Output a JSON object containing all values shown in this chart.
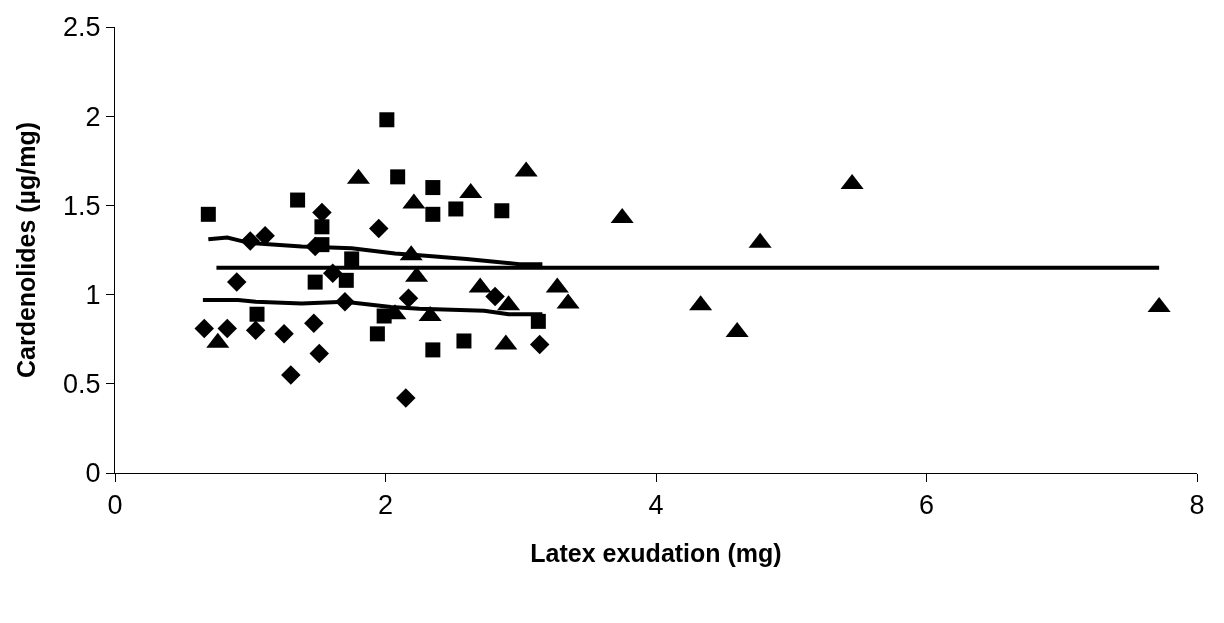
{
  "chart_data": {
    "type": "scatter",
    "xlabel": "Latex exudation (mg)",
    "ylabel": "Cardenolides (µg/mg)",
    "xlim": [
      0,
      8
    ],
    "xticks": [
      0,
      2,
      4,
      6,
      8
    ],
    "ylim": [
      0,
      2.5
    ],
    "yticks": [
      0,
      0.5,
      1,
      1.5,
      2,
      2.5
    ],
    "series": [
      {
        "marker": "diamond",
        "color": "#000000",
        "x": [
          0.66,
          0.83,
          0.9,
          1.0,
          1.11,
          1.04,
          1.25,
          1.3,
          1.47,
          1.51,
          1.53,
          1.48,
          1.61,
          1.7,
          1.95,
          2.17,
          2.15,
          2.81,
          3.14
        ],
        "values": [
          0.81,
          0.81,
          1.07,
          1.3,
          1.33,
          0.8,
          0.78,
          0.55,
          0.84,
          0.67,
          1.46,
          1.27,
          1.12,
          0.96,
          1.37,
          0.98,
          0.42,
          0.99,
          0.72
        ]
      },
      {
        "marker": "square",
        "color": "#000000",
        "x": [
          0.69,
          1.35,
          2.01,
          2.09,
          1.53,
          1.53,
          1.75,
          1.48,
          1.71,
          1.05,
          1.99,
          1.94,
          2.35,
          2.35,
          2.52,
          2.86,
          2.35,
          2.58,
          3.13
        ],
        "values": [
          1.45,
          1.53,
          1.98,
          1.66,
          1.38,
          1.28,
          1.2,
          1.07,
          1.08,
          0.89,
          0.88,
          0.78,
          1.6,
          1.45,
          1.48,
          1.47,
          0.69,
          0.74,
          0.85
        ]
      },
      {
        "marker": "triangle",
        "color": "#000000",
        "x": [
          1.8,
          0.76,
          2.21,
          2.63,
          3.04,
          2.19,
          2.23,
          2.07,
          2.33,
          2.7,
          2.91,
          2.89,
          3.27,
          3.35,
          3.75,
          4.33,
          4.6,
          4.77,
          5.45,
          7.72
        ],
        "values": [
          1.65,
          0.73,
          1.51,
          1.57,
          1.69,
          1.22,
          1.1,
          0.89,
          0.88,
          1.04,
          0.94,
          0.72,
          1.04,
          0.95,
          1.43,
          0.94,
          0.79,
          1.29,
          1.62,
          0.93
        ]
      },
      {
        "type": "line",
        "marker": "none",
        "color": "#000000",
        "x": [
          0.69,
          0.83,
          0.99,
          1.38,
          1.75,
          2.07,
          2.25,
          2.6,
          2.99,
          3.16
        ],
        "values": [
          1.31,
          1.32,
          1.29,
          1.27,
          1.26,
          1.23,
          1.22,
          1.2,
          1.17,
          1.17
        ]
      },
      {
        "type": "line",
        "marker": "none",
        "color": "#000000",
        "x": [
          0.65,
          0.91,
          1.04,
          1.38,
          1.7,
          2.04,
          2.25,
          2.73,
          2.91,
          3.16
        ],
        "values": [
          0.97,
          0.97,
          0.96,
          0.95,
          0.96,
          0.93,
          0.92,
          0.91,
          0.89,
          0.89
        ]
      },
      {
        "type": "line",
        "marker": "none",
        "color": "#000000",
        "x": [
          0.75,
          7.72
        ],
        "values": [
          1.15,
          1.15
        ]
      }
    ]
  }
}
